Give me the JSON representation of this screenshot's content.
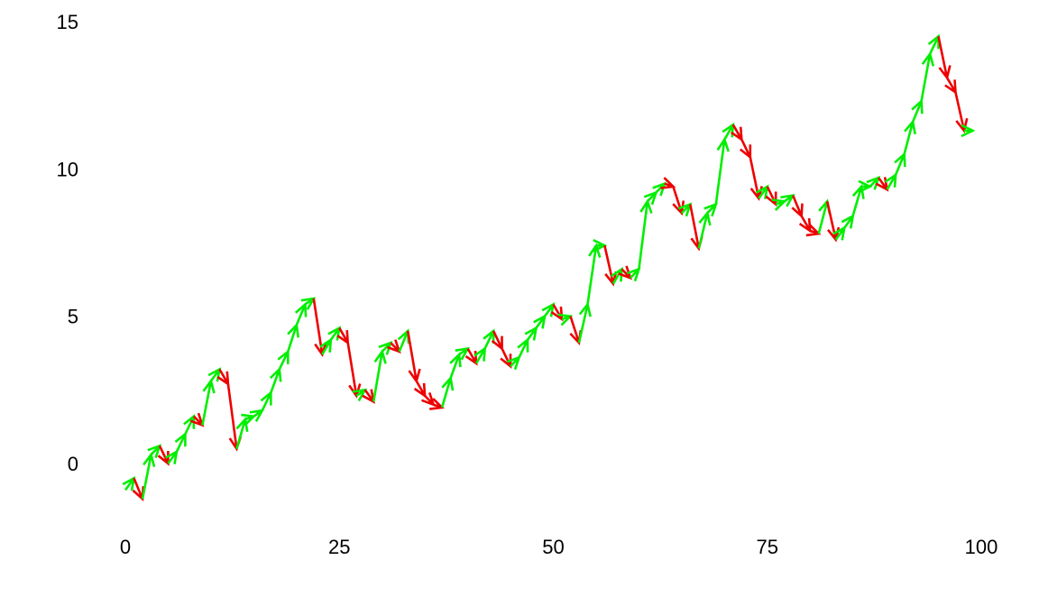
{
  "chart_data": {
    "type": "line",
    "title": "",
    "xlabel": "",
    "ylabel": "",
    "xlim": [
      0,
      100
    ],
    "ylim": [
      -1.5,
      15
    ],
    "x_ticks": [
      0,
      25,
      50,
      75,
      100
    ],
    "y_ticks": [
      0,
      5,
      10,
      15
    ],
    "x_tick_labels": [
      "0",
      "25",
      "50",
      "75",
      "100"
    ],
    "y_tick_labels": [
      "0",
      "5",
      "10",
      "15"
    ],
    "grid": false,
    "legend": "none",
    "up_color": "#00ee00",
    "down_color": "#ee0000",
    "x": [
      0,
      1,
      2,
      3,
      4,
      5,
      6,
      7,
      8,
      9,
      10,
      11,
      12,
      13,
      14,
      15,
      16,
      17,
      18,
      19,
      20,
      21,
      22,
      23,
      24,
      25,
      26,
      27,
      28,
      29,
      30,
      31,
      32,
      33,
      34,
      35,
      36,
      37,
      38,
      39,
      40,
      41,
      42,
      43,
      44,
      45,
      46,
      47,
      48,
      49,
      50,
      51,
      52,
      53,
      54,
      55,
      56,
      57,
      58,
      59,
      60,
      61,
      62,
      63,
      64,
      65,
      66,
      67,
      68,
      69,
      70,
      71,
      72,
      73,
      74,
      75,
      76,
      77,
      78,
      79,
      80,
      81,
      82,
      83,
      84,
      85,
      86,
      87,
      88,
      89,
      90,
      91,
      92,
      93,
      94,
      95,
      96,
      97,
      98,
      99
    ],
    "y": [
      -0.9,
      -0.5,
      -1.2,
      0.3,
      0.6,
      0.0,
      0.4,
      1.0,
      1.6,
      1.3,
      2.8,
      3.2,
      2.7,
      0.5,
      1.5,
      1.6,
      1.8,
      2.4,
      3.2,
      3.8,
      4.7,
      5.4,
      5.6,
      3.7,
      4.2,
      4.6,
      4.1,
      2.3,
      2.5,
      2.1,
      3.8,
      4.1,
      3.8,
      4.5,
      2.8,
      2.3,
      2.0,
      1.9,
      2.9,
      3.7,
      3.9,
      3.4,
      3.9,
      4.5,
      3.9,
      3.3,
      3.6,
      4.2,
      4.6,
      5.0,
      5.4,
      4.9,
      5.0,
      4.1,
      5.4,
      7.4,
      7.4,
      6.1,
      6.6,
      6.3,
      6.6,
      8.9,
      9.2,
      9.5,
      9.4,
      8.5,
      8.8,
      7.3,
      8.5,
      8.8,
      11.0,
      11.5,
      11.0,
      10.4,
      9.0,
      9.4,
      8.8,
      8.9,
      9.1,
      8.4,
      7.9,
      7.8,
      8.9,
      7.6,
      8.0,
      8.4,
      9.4,
      9.4,
      9.7,
      9.3,
      9.8,
      10.5,
      11.6,
      12.3,
      13.9,
      14.5,
      13.1,
      12.6,
      11.3,
      11.3
    ]
  }
}
